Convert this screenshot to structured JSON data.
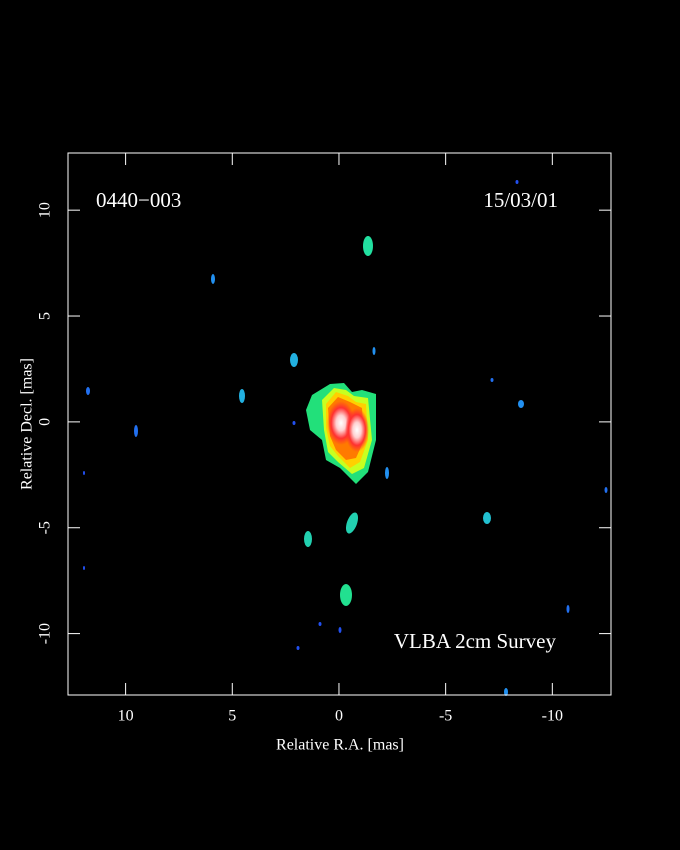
{
  "chart_data": {
    "type": "image",
    "annotations": [
      "0440−003",
      "15/03/01",
      "VLBA 2cm Survey"
    ],
    "x_label": "Relative R.A. [mas]",
    "y_label": "Relative Decl. [mas]",
    "xlim": [
      12.7,
      -12.75
    ],
    "ylim": [
      -12.9,
      12.7
    ],
    "xticks": [
      10,
      5,
      0,
      -5,
      -10
    ],
    "yticks": [
      -10,
      -5,
      0,
      5,
      10
    ],
    "color": "#ffffff"
  }
}
